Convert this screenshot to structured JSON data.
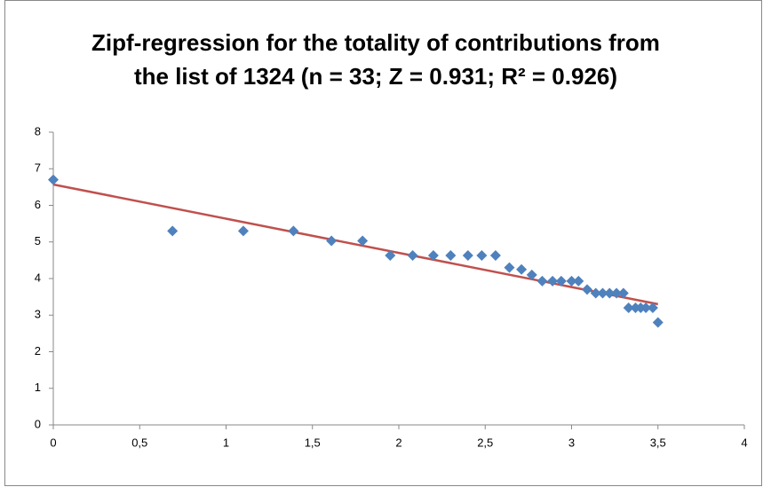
{
  "chart_data": {
    "type": "scatter",
    "title": [
      "Zipf-regression for the totality of contributions from",
      "the list of 1324 (n = 33; Z = 0.931; R² = 0.926)"
    ],
    "series": [
      {
        "type": "scatter",
        "color": "#4f81bd",
        "x": [
          0,
          0.69,
          1.1,
          1.39,
          1.61,
          1.79,
          1.95,
          2.08,
          2.2,
          2.3,
          2.4,
          2.48,
          2.56,
          2.64,
          2.71,
          2.77,
          2.83,
          2.89,
          2.94,
          3.0,
          3.04,
          3.09,
          3.14,
          3.18,
          3.22,
          3.26,
          3.3,
          3.33,
          3.37,
          3.4,
          3.43,
          3.47,
          3.5
        ],
        "values": [
          6.7,
          5.3,
          5.3,
          5.3,
          5.03,
          5.03,
          4.63,
          4.63,
          4.63,
          4.63,
          4.63,
          4.63,
          4.63,
          4.3,
          4.25,
          4.1,
          3.93,
          3.93,
          3.93,
          3.93,
          3.93,
          3.7,
          3.6,
          3.6,
          3.6,
          3.6,
          3.6,
          3.2,
          3.2,
          3.2,
          3.2,
          3.2,
          2.8
        ]
      },
      {
        "type": "line",
        "color": "#c0504d",
        "x": [
          0,
          3.5
        ],
        "values": [
          6.57,
          3.3
        ]
      }
    ],
    "xlim": [
      0,
      4
    ],
    "xticks": [
      0,
      {
        "value": 0.5,
        "label": "0,5"
      },
      1,
      {
        "value": 1.5,
        "label": "1,5"
      },
      2,
      {
        "value": 2.5,
        "label": "2,5"
      },
      3,
      {
        "value": 3.5,
        "label": "3,5"
      },
      4
    ],
    "ylim": [
      0,
      8
    ],
    "yticks": [
      0,
      1,
      2,
      3,
      4,
      5,
      6,
      7,
      8
    ]
  }
}
